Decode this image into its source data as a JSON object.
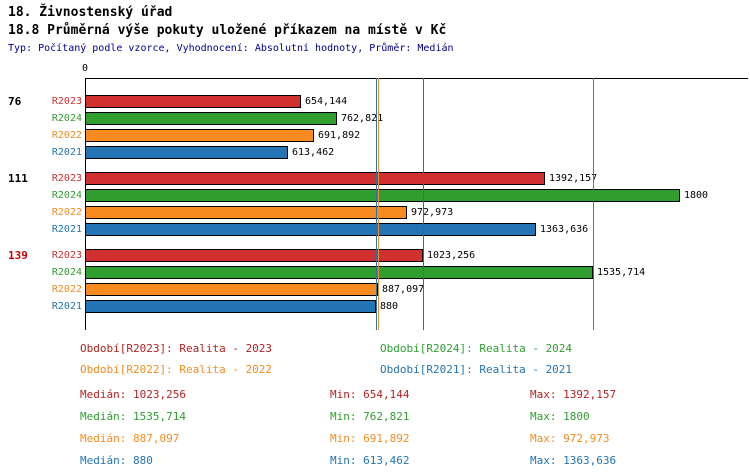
{
  "header": {
    "title": "18. Živnostenský úřad",
    "subtitle": "18.8 Průměrná výše pokuty uložené příkazem na místě v Kč",
    "meta": "Typ: Počítaný podle vzorce, Vyhodnocení: Absolutní hodnoty, Průměr: Medián"
  },
  "chart_data": {
    "type": "bar",
    "orientation": "horizontal",
    "title": "18.8 Průměrná výše pokuty uložené příkazem na místě v Kč",
    "xlabel": "",
    "ylabel": "",
    "xlim": [
      0,
      1800
    ],
    "axis_origin_label": "0",
    "grid": "median-lines",
    "legend_position": "bottom",
    "groups": [
      {
        "label": "76",
        "label_color": "#000000"
      },
      {
        "label": "111",
        "label_color": "#000000"
      },
      {
        "label": "139",
        "label_color": "#cc0000"
      }
    ],
    "series": [
      {
        "name": "R2023",
        "color": "#d03030",
        "text_color": "#b22222",
        "values": [
          654.144,
          1392.157,
          1023.256
        ],
        "labels": [
          "654,144",
          "1392,157",
          "1023,256"
        ],
        "median": 1023.256,
        "min": 654.144,
        "max": 1392.157
      },
      {
        "name": "R2024",
        "color": "#2f9e2f",
        "text_color": "#2f9e2f",
        "values": [
          762.821,
          1800,
          1535.714
        ],
        "labels": [
          "762,821",
          "1800",
          "1535,714"
        ],
        "median": 1535.714,
        "min": 762.821,
        "max": 1800
      },
      {
        "name": "R2022",
        "color": "#f78b1f",
        "text_color": "#f78b1f",
        "values": [
          691.892,
          972.973,
          887.097
        ],
        "labels": [
          "691,892",
          "972,973",
          "887,097"
        ],
        "median": 887.097,
        "min": 691.892,
        "max": 972.973
      },
      {
        "name": "R2021",
        "color": "#2274b5",
        "text_color": "#2274b5",
        "values": [
          613.462,
          1363.636,
          880
        ],
        "labels": [
          "613,462",
          "1363,636",
          "880"
        ],
        "median": 880,
        "min": 613.462,
        "max": 1363.636
      }
    ]
  },
  "legend": {
    "items": [
      {
        "text": "Období[R2023]: Realita - 2023",
        "color": "#b22222"
      },
      {
        "text": "Období[R2024]: Realita - 2024",
        "color": "#2f9e2f"
      },
      {
        "text": "Období[R2022]: Realita - 2022",
        "color": "#f78b1f"
      },
      {
        "text": "Období[R2021]: Realita - 2021",
        "color": "#2274b5"
      }
    ]
  },
  "stats": {
    "rows": [
      {
        "color": "#b22222",
        "median": "Medián: 1023,256",
        "min": "Min: 654,144",
        "max": "Max: 1392,157"
      },
      {
        "color": "#2f9e2f",
        "median": "Medián: 1535,714",
        "min": "Min: 762,821",
        "max": "Max: 1800"
      },
      {
        "color": "#f78b1f",
        "median": "Medián: 887,097",
        "min": "Min: 691,892",
        "max": "Max: 972,973"
      },
      {
        "color": "#2274b5",
        "median": "Medián: 880",
        "min": "Min: 613,462",
        "max": "Max: 1363,636"
      }
    ]
  }
}
